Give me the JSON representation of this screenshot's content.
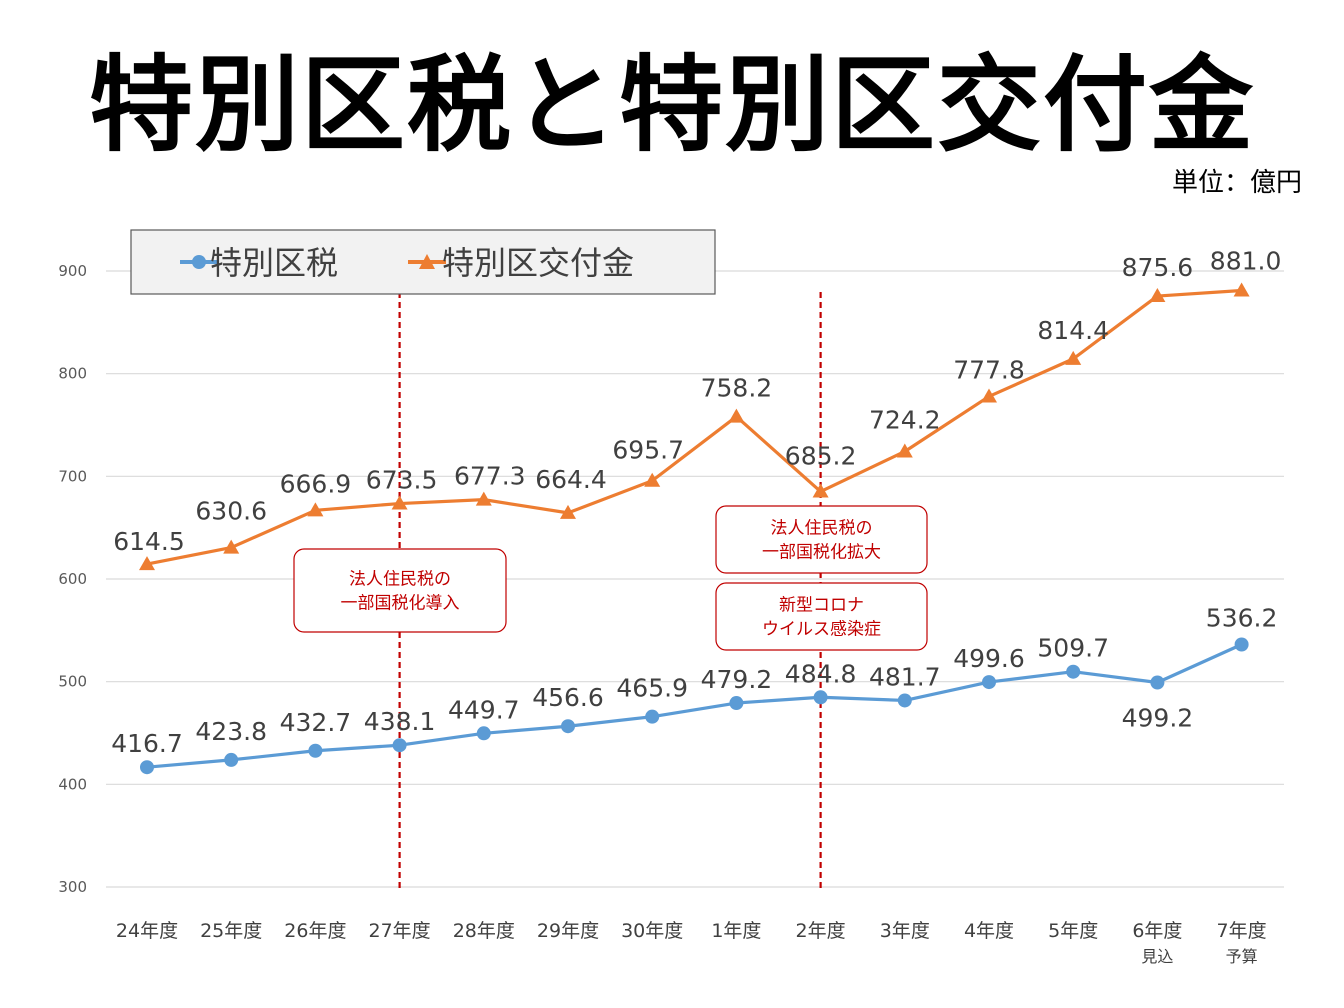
{
  "title": "特別区税と特別区交付金",
  "unit": "単位：億円",
  "colors": {
    "tax": "#5b9bd5",
    "grant": "#ed7d31",
    "annotation": "#c00000",
    "legend_bg": "#f2f2f2"
  },
  "chart_data": {
    "type": "line",
    "categories": [
      "24年度",
      "25年度",
      "26年度",
      "27年度",
      "28年度",
      "29年度",
      "30年度",
      "1年度",
      "2年度",
      "3年度",
      "4年度",
      "5年度",
      "6年度",
      "7年度"
    ],
    "category_sublabels": [
      "",
      "",
      "",
      "",
      "",
      "",
      "",
      "",
      "",
      "",
      "",
      "",
      "見込",
      "予算"
    ],
    "series": [
      {
        "name": "特別区税",
        "marker": "circle",
        "color": "#5b9bd5",
        "values": [
          416.7,
          423.8,
          432.7,
          438.1,
          449.7,
          456.6,
          465.9,
          479.2,
          484.8,
          481.7,
          499.6,
          509.7,
          499.2,
          536.2
        ],
        "labels": [
          "416.7",
          "423.8",
          "432.7",
          "438.1",
          "449.7",
          "456.6",
          "465.9",
          "479.2",
          "484.8",
          "481.7",
          "499.6",
          "509.7",
          "499.2",
          "536.2"
        ]
      },
      {
        "name": "特別区交付金",
        "marker": "triangle",
        "color": "#ed7d31",
        "values": [
          614.5,
          630.6,
          666.9,
          673.5,
          677.3,
          664.4,
          695.7,
          758.2,
          685.2,
          724.2,
          777.8,
          814.4,
          875.6,
          881.0
        ],
        "labels": [
          "614.5",
          "630.6",
          "666.9",
          "673.5",
          "677.3",
          "664.4",
          "695.7",
          "758.2",
          "685.2",
          "724.2",
          "777.8",
          "814.4",
          "875.6",
          "881.0"
        ]
      }
    ],
    "ylim": [
      300,
      900
    ],
    "yticks": [
      300,
      400,
      500,
      600,
      700,
      800,
      900
    ],
    "grid": true,
    "legend_position": "top-left",
    "reference_lines": [
      {
        "category_index": 3,
        "style": "dashed",
        "color": "#c00000"
      },
      {
        "category_index": 8,
        "style": "dashed",
        "color": "#c00000"
      }
    ],
    "annotations": [
      {
        "id": "ann1",
        "lines": [
          "法人住民税の",
          "一部国税化導入"
        ]
      },
      {
        "id": "ann2",
        "lines": [
          "法人住民税の",
          "一部国税化拡大"
        ]
      },
      {
        "id": "ann3",
        "lines": [
          "新型コロナ",
          "ウイルス感染症"
        ]
      }
    ]
  }
}
